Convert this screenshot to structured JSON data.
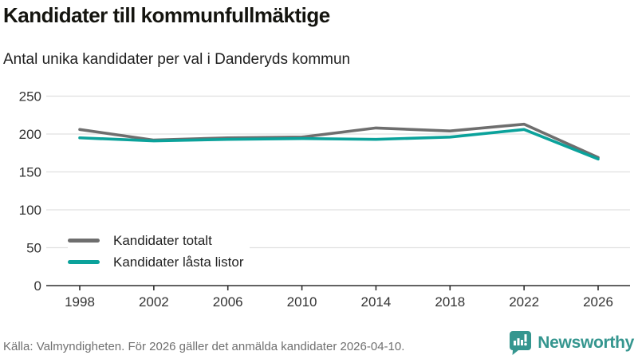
{
  "header": {
    "title": "Kandidater till kommunfullmäktige",
    "subtitle": "Antal unika kandidater per val i Danderyds kommun"
  },
  "chart_data": {
    "type": "line",
    "x": [
      1998,
      2002,
      2006,
      2010,
      2014,
      2018,
      2022,
      2026
    ],
    "series": [
      {
        "name": "Kandidater totalt",
        "color": "#6e6e6e",
        "values": [
          206,
          192,
          195,
          196,
          208,
          204,
          213,
          169
        ]
      },
      {
        "name": "Kandidater låsta listor",
        "color": "#0ba29b",
        "values": [
          195,
          191,
          193,
          194,
          193,
          196,
          206,
          167
        ]
      }
    ],
    "title": "Kandidater till kommunfullmäktige",
    "subtitle": "Antal unika kandidater per val i Danderyds kommun",
    "xlabel": "",
    "ylabel": "",
    "ylim": [
      0,
      250
    ],
    "yticks": [
      0,
      50,
      100,
      150,
      200,
      250
    ],
    "grid": true,
    "legend_position": "inside-bottom-left"
  },
  "legend": {
    "items": [
      {
        "label": "Kandidater totalt",
        "color": "#6e6e6e"
      },
      {
        "label": "Kandidater låsta listor",
        "color": "#0ba29b"
      }
    ]
  },
  "footer": {
    "source": "Källa: Valmyndigheten. För 2026 gäller det anmälda kandidater 2026-04-10.",
    "brand": "Newsworthy",
    "brand_color": "#35968f"
  },
  "colors": {
    "grid": "#e0e0e0",
    "axis": "#2e2e2e",
    "tick_label": "#333333"
  }
}
